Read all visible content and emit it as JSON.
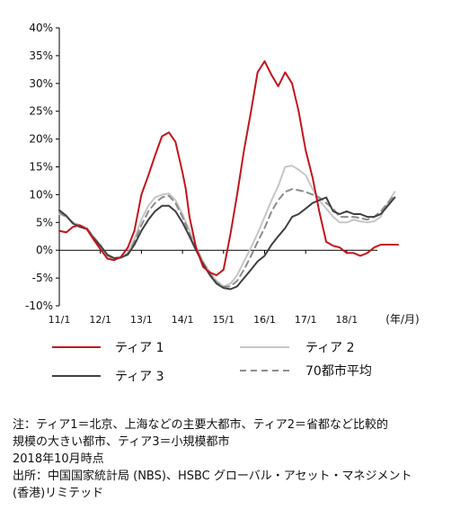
{
  "chart_data": {
    "type": "line",
    "x_unit_label": "(年/月)",
    "x_ticks": [
      "11/1",
      "12/1",
      "13/1",
      "14/1",
      "15/1",
      "16/1",
      "17/1",
      "18/1"
    ],
    "ylim": [
      -10,
      40
    ],
    "y_ticks": [
      "-10%",
      "-5%",
      "0%",
      "5%",
      "10%",
      "15%",
      "20%",
      "25%",
      "30%",
      "35%",
      "40%"
    ],
    "grid": false,
    "legend_position": "bottom",
    "series": [
      {
        "name": "ティア 1",
        "color": "#c4141c",
        "dash": "solid",
        "x": [
          0.0,
          0.17,
          0.33,
          0.5,
          0.67,
          0.83,
          1.0,
          1.17,
          1.33,
          1.5,
          1.67,
          1.83,
          2.0,
          2.17,
          2.33,
          2.5,
          2.67,
          2.83,
          3.0,
          3.08,
          3.17,
          3.33,
          3.5,
          3.67,
          3.83,
          4.0,
          4.17,
          4.33,
          4.5,
          4.67,
          4.83,
          5.0,
          5.17,
          5.33,
          5.5,
          5.67,
          5.83,
          6.0,
          6.17,
          6.33,
          6.5,
          6.67,
          6.83,
          7.0,
          7.17,
          7.33,
          7.5,
          7.67,
          7.83,
          8.0,
          8.25
        ],
        "y": [
          3.5,
          3.2,
          4.2,
          4.5,
          3.8,
          2.0,
          0.2,
          -1.5,
          -1.8,
          -1.2,
          0.5,
          3.5,
          10.0,
          13.5,
          17.0,
          20.5,
          21.2,
          19.5,
          14.0,
          11.0,
          6.0,
          0.5,
          -3.0,
          -4.0,
          -4.5,
          -3.5,
          3.0,
          10.0,
          18.0,
          25.0,
          32.0,
          34.0,
          31.5,
          29.5,
          32.0,
          30.0,
          25.0,
          18.0,
          13.0,
          7.0,
          1.5,
          0.8,
          0.5,
          -0.5,
          -0.5,
          -1.0,
          -0.5,
          0.5,
          1.0,
          1.0,
          1.0
        ]
      },
      {
        "name": "ティア 2",
        "color": "#c6c6c6",
        "dash": "solid",
        "x": [
          0.0,
          0.17,
          0.33,
          0.5,
          0.67,
          0.83,
          1.0,
          1.17,
          1.33,
          1.5,
          1.67,
          1.83,
          2.0,
          2.17,
          2.33,
          2.5,
          2.67,
          2.83,
          3.0,
          3.17,
          3.33,
          3.5,
          3.67,
          3.83,
          4.0,
          4.17,
          4.33,
          4.5,
          4.67,
          4.83,
          5.0,
          5.17,
          5.33,
          5.5,
          5.67,
          5.83,
          6.0,
          6.17,
          6.33,
          6.5,
          6.67,
          6.83,
          7.0,
          7.17,
          7.33,
          7.5,
          7.67,
          7.83,
          8.0,
          8.17
        ],
        "y": [
          6.5,
          6.0,
          5.0,
          4.5,
          4.0,
          2.5,
          1.0,
          -1.0,
          -1.6,
          -1.4,
          -0.5,
          2.0,
          5.5,
          8.0,
          9.5,
          10.0,
          10.2,
          9.0,
          6.5,
          3.5,
          0.5,
          -2.0,
          -4.0,
          -5.5,
          -6.5,
          -6.0,
          -4.5,
          -2.0,
          0.5,
          3.0,
          6.0,
          9.0,
          11.5,
          15.0,
          15.2,
          14.5,
          13.5,
          11.0,
          9.0,
          7.5,
          6.0,
          5.0,
          5.0,
          5.5,
          5.2,
          5.0,
          5.2,
          6.0,
          8.5,
          10.5
        ]
      },
      {
        "name": "ティア 3",
        "color": "#404040",
        "dash": "solid",
        "x": [
          0.0,
          0.17,
          0.33,
          0.5,
          0.67,
          0.83,
          1.0,
          1.17,
          1.33,
          1.5,
          1.67,
          1.83,
          2.0,
          2.17,
          2.33,
          2.5,
          2.67,
          2.83,
          3.0,
          3.17,
          3.33,
          3.5,
          3.67,
          3.83,
          4.0,
          4.17,
          4.33,
          4.5,
          4.67,
          4.83,
          5.0,
          5.17,
          5.33,
          5.5,
          5.67,
          5.83,
          6.0,
          6.17,
          6.33,
          6.5,
          6.67,
          6.83,
          7.0,
          7.17,
          7.33,
          7.5,
          7.67,
          7.83,
          8.0,
          8.17
        ],
        "y": [
          7.2,
          6.2,
          4.8,
          4.2,
          3.8,
          2.2,
          0.8,
          -0.8,
          -1.4,
          -1.3,
          -0.8,
          1.0,
          3.5,
          5.5,
          7.0,
          8.0,
          8.0,
          7.0,
          5.0,
          2.5,
          0.0,
          -2.5,
          -4.5,
          -6.0,
          -6.8,
          -7.0,
          -6.5,
          -5.0,
          -3.5,
          -2.0,
          -1.0,
          1.0,
          2.5,
          4.0,
          6.0,
          6.5,
          7.5,
          8.5,
          9.0,
          9.5,
          7.0,
          6.5,
          7.0,
          6.5,
          6.5,
          6.0,
          6.0,
          6.5,
          8.0,
          9.5
        ]
      },
      {
        "name": "70都市平均",
        "color": "#8c8c8c",
        "dash": "dashed",
        "x": [
          0.0,
          0.17,
          0.33,
          0.5,
          0.67,
          0.83,
          1.0,
          1.17,
          1.33,
          1.5,
          1.67,
          1.83,
          2.0,
          2.17,
          2.33,
          2.5,
          2.67,
          2.83,
          3.0,
          3.17,
          3.33,
          3.5,
          3.67,
          3.83,
          4.0,
          4.17,
          4.33,
          4.5,
          4.67,
          4.83,
          5.0,
          5.17,
          5.33,
          5.5,
          5.67,
          5.83,
          6.0,
          6.17,
          6.33,
          6.5,
          6.67,
          6.83,
          7.0,
          7.17,
          7.33,
          7.5,
          7.67,
          7.83,
          8.0,
          8.17
        ],
        "y": [
          6.8,
          6.0,
          5.0,
          4.4,
          4.0,
          2.4,
          0.9,
          -0.9,
          -1.5,
          -1.3,
          -0.6,
          1.5,
          4.5,
          7.0,
          8.5,
          9.5,
          9.8,
          8.5,
          6.0,
          3.0,
          0.3,
          -2.2,
          -4.2,
          -5.8,
          -6.6,
          -6.5,
          -5.5,
          -3.5,
          -1.0,
          1.5,
          4.0,
          7.0,
          9.0,
          10.5,
          11.0,
          10.8,
          10.5,
          10.0,
          9.5,
          8.5,
          7.5,
          6.0,
          6.0,
          6.0,
          5.8,
          5.5,
          6.0,
          7.0,
          8.5,
          10.0
        ]
      }
    ]
  },
  "notes": [
    "注：ティア1＝北京、上海などの主要大都市、ティア2＝省都など比較的",
    "規模の大きい都市、ティア3＝小規模都市",
    "2018年10月時点",
    "出所：中国国家統計局 (NBS)、HSBC グローバル・アセット・マネジメント",
    "(香港)リミテッド"
  ]
}
